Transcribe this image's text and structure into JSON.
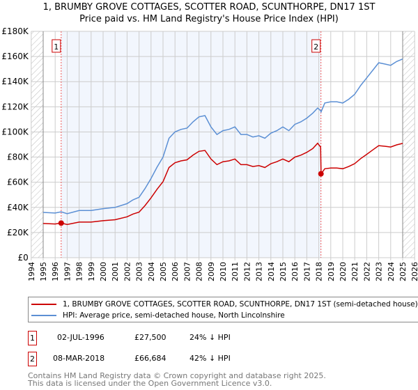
{
  "chart_data": {
    "type": "line",
    "title": "1, BRUMBY GROVE COTTAGES, SCOTTER ROAD, SCUNTHORPE, DN17 1ST",
    "subtitle": "Price paid vs. HM Land Registry's House Price Index (HPI)",
    "xlabel": "",
    "ylabel": "",
    "xlim": [
      1994,
      2026
    ],
    "ylim": [
      0,
      180000
    ],
    "x_ticks": [
      "1994",
      "1995",
      "1996",
      "1997",
      "1998",
      "1999",
      "2000",
      "2001",
      "2002",
      "2003",
      "2004",
      "2005",
      "2006",
      "2007",
      "2008",
      "2009",
      "2010",
      "2011",
      "2012",
      "2013",
      "2014",
      "2015",
      "2016",
      "2017",
      "2018",
      "2019",
      "2020",
      "2021",
      "2022",
      "2023",
      "2024",
      "2025",
      "2026"
    ],
    "y_ticks": [
      {
        "value": 0,
        "label": "£0"
      },
      {
        "value": 20000,
        "label": "£20K"
      },
      {
        "value": 40000,
        "label": "£40K"
      },
      {
        "value": 60000,
        "label": "£60K"
      },
      {
        "value": 80000,
        "label": "£80K"
      },
      {
        "value": 100000,
        "label": "£100K"
      },
      {
        "value": 120000,
        "label": "£120K"
      },
      {
        "value": 140000,
        "label": "£140K"
      },
      {
        "value": 160000,
        "label": "£160K"
      },
      {
        "value": 180000,
        "label": "£180K"
      }
    ],
    "grid": true,
    "x": [
      1995,
      1996,
      1996.5,
      1997,
      1998,
      1999,
      2000,
      2001,
      2002,
      2002.5,
      2003,
      2003.5,
      2004,
      2004.5,
      2005,
      2005.5,
      2006,
      2006.5,
      2007,
      2007.5,
      2008,
      2008.5,
      2009,
      2009.5,
      2010,
      2010.5,
      2011,
      2011.5,
      2012,
      2012.5,
      2013,
      2013.5,
      2014,
      2014.5,
      2015,
      2015.5,
      2016,
      2016.5,
      2017,
      2017.5,
      2017.9,
      2018.15,
      2018.19,
      2018.5,
      2019,
      2019.5,
      2020,
      2020.5,
      2021,
      2021.5,
      2022,
      2022.5,
      2023,
      2023.5,
      2024,
      2024.5,
      2025
    ],
    "series": [
      {
        "name": "1, BRUMBY GROVE COTTAGES, SCOTTER ROAD, SCUNTHORPE, DN17 1ST (semi-detached house)",
        "color": "#cc0000",
        "values": [
          27200,
          26800,
          27500,
          26400,
          28300,
          28300,
          29400,
          30200,
          32500,
          34700,
          36200,
          41500,
          47600,
          54400,
          60400,
          71700,
          75500,
          77000,
          77800,
          81500,
          84600,
          85300,
          78500,
          74000,
          76300,
          77000,
          78500,
          74000,
          74000,
          72500,
          73200,
          71700,
          74700,
          76300,
          78500,
          76300,
          80000,
          81500,
          83800,
          86800,
          91000,
          88000,
          66684,
          70700,
          71300,
          71300,
          70700,
          72500,
          74800,
          78800,
          82200,
          85700,
          89100,
          88600,
          88000,
          89700,
          90900
        ]
      },
      {
        "name": "HPI: Average price, semi-detached house, North Lincolnshire",
        "color": "#5b8fd4",
        "values": [
          36000,
          35500,
          36500,
          35000,
          37500,
          37500,
          39000,
          40000,
          43000,
          46000,
          48000,
          55000,
          63000,
          72000,
          80000,
          95000,
          100000,
          102000,
          103000,
          108000,
          112000,
          113000,
          104000,
          98000,
          101000,
          102000,
          104000,
          98000,
          98000,
          96000,
          97000,
          95000,
          99000,
          101000,
          104000,
          101000,
          106000,
          108000,
          111000,
          115000,
          119000,
          117000,
          116000,
          123000,
          124000,
          124000,
          123000,
          126000,
          130000,
          137000,
          143000,
          149000,
          155000,
          154000,
          153000,
          156000,
          158000
        ]
      }
    ],
    "sales": [
      {
        "id": "1",
        "x": 1996.5,
        "value": 27500,
        "date": "02-JUL-1996",
        "price": "£27,500",
        "hpi_diff": "24% ↓ HPI"
      },
      {
        "id": "2",
        "x": 2018.18,
        "value": 66684,
        "date": "08-MAR-2018",
        "price": "£66,684",
        "hpi_diff": "42% ↓ HPI"
      }
    ],
    "shaded_range": [
      1996.5,
      2018.18
    ],
    "hatched_before": 1995,
    "hatched_after": 2025,
    "legend_placement": "bottom"
  },
  "footer": {
    "line1": "Contains HM Land Registry data © Crown copyright and database right 2025.",
    "line2": "This data is licensed under the Open Government Licence v3.0."
  }
}
